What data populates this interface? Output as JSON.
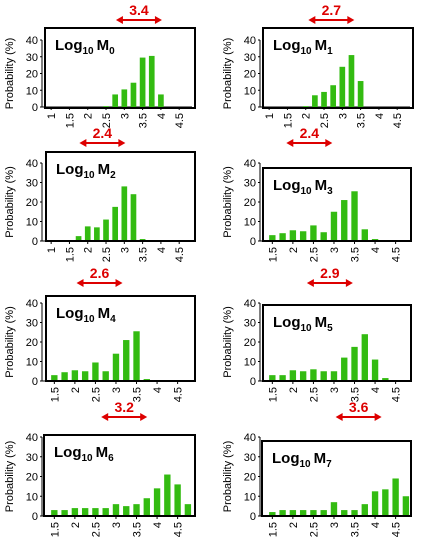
{
  "colors": {
    "bar": "#33bb11",
    "annotation": "#dd0000",
    "axis": "#000000"
  },
  "chart_data": [
    {
      "type": "bar",
      "title_main": "Log",
      "title_sub": "10",
      "title_var": "M",
      "title_idx": "0",
      "ylabel": "Probability (%)",
      "ylim": [
        0,
        40
      ],
      "yticks": [
        "0",
        "10",
        "20",
        "30",
        "40"
      ],
      "categories": [
        "1",
        "1.5",
        "2",
        "2.5",
        "3",
        "3.5",
        "4",
        "4.5"
      ],
      "x": [
        2.5,
        2.75,
        3,
        3.25,
        3.5,
        3.75,
        4
      ],
      "values": [
        0.5,
        7.5,
        10.5,
        14.5,
        29.5,
        30.5,
        7.5
      ],
      "annotation": {
        "label": "3.4",
        "value": 3.4
      }
    },
    {
      "type": "bar",
      "title_main": "Log",
      "title_sub": "10",
      "title_var": "M",
      "title_idx": "1",
      "ylabel": "Probability (%)",
      "ylim": [
        0,
        40
      ],
      "yticks": [
        "0",
        "10",
        "20",
        "30",
        "40"
      ],
      "categories": [
        "1",
        "1.5",
        "2",
        "2.5",
        "3",
        "3.5",
        "4",
        "4.5"
      ],
      "x": [
        2,
        2.25,
        2.5,
        2.75,
        3,
        3.25,
        3.5
      ],
      "values": [
        0.5,
        7,
        9,
        13,
        24,
        31,
        15.5
      ],
      "annotation": {
        "label": "2.7",
        "value": 2.7
      }
    },
    {
      "type": "bar",
      "title_main": "Log",
      "title_sub": "10",
      "title_var": "M",
      "title_idx": "2",
      "ylabel": "Probability (%)",
      "ylim": [
        0,
        40
      ],
      "yticks": [
        "0",
        "10",
        "20",
        "30",
        "40"
      ],
      "categories": [
        "1",
        "1.5",
        "2",
        "2.5",
        "3",
        "3.5",
        "4",
        "4.5"
      ],
      "x": [
        1.75,
        2,
        2.25,
        2.5,
        2.75,
        3,
        3.25,
        3.5
      ],
      "values": [
        2.5,
        7.5,
        7,
        11,
        17.5,
        28,
        24,
        1
      ],
      "annotation": {
        "label": "2.4",
        "value": 2.4
      }
    },
    {
      "type": "bar",
      "title_main": "Log",
      "title_sub": "10",
      "title_var": "M",
      "title_idx": "3",
      "ylabel": "Probability (%)",
      "ylim": [
        0,
        40
      ],
      "yticks": [
        "0",
        "10",
        "20",
        "30",
        "40"
      ],
      "categories": [
        "1.5",
        "2",
        "2.5",
        "3",
        "3.5",
        "4",
        "4.5"
      ],
      "x": [
        1.5,
        1.75,
        2,
        2.25,
        2.5,
        2.75,
        3,
        3.25,
        3.5,
        3.75,
        4
      ],
      "values": [
        3,
        4,
        5.5,
        5,
        8,
        4.5,
        15,
        21,
        25.5,
        6,
        1
      ],
      "annotation": {
        "label": "2.4",
        "value": 2.4
      }
    },
    {
      "type": "bar",
      "title_main": "Log",
      "title_sub": "10",
      "title_var": "M",
      "title_idx": "4",
      "ylabel": "Probability (%)",
      "ylim": [
        0,
        40
      ],
      "yticks": [
        "0",
        "10",
        "20",
        "30",
        "40"
      ],
      "categories": [
        "1.5",
        "2",
        "2.5",
        "3",
        "3.5",
        "4",
        "4.5"
      ],
      "x": [
        1.5,
        1.75,
        2,
        2.25,
        2.5,
        2.75,
        3,
        3.25,
        3.5,
        3.75
      ],
      "values": [
        3,
        4.5,
        5.5,
        5,
        9.5,
        5,
        14,
        21,
        25.5,
        1
      ],
      "annotation": {
        "label": "2.6",
        "value": 2.6
      }
    },
    {
      "type": "bar",
      "title_main": "Log",
      "title_sub": "10",
      "title_var": "M",
      "title_idx": "5",
      "ylabel": "Probability (%)",
      "ylim": [
        0,
        40
      ],
      "yticks": [
        "0",
        "10",
        "20",
        "30",
        "40"
      ],
      "categories": [
        "1.5",
        "2",
        "2.5",
        "3",
        "3.5",
        "4",
        "4.5"
      ],
      "x": [
        1.5,
        1.75,
        2,
        2.25,
        2.5,
        2.75,
        3,
        3.25,
        3.5,
        3.75,
        4,
        4.25
      ],
      "values": [
        3,
        3,
        5.5,
        5,
        6,
        5,
        5,
        12,
        17.5,
        24,
        11,
        1.5
      ],
      "annotation": {
        "label": "2.9",
        "value": 2.9
      }
    },
    {
      "type": "bar",
      "title_main": "Log",
      "title_sub": "10",
      "title_var": "M",
      "title_idx": "6",
      "ylabel": "Probability (%)",
      "ylim": [
        0,
        40
      ],
      "yticks": [
        "0",
        "10",
        "20",
        "30",
        "40"
      ],
      "categories": [
        "1.5",
        "2",
        "2.5",
        "3",
        "3.5",
        "4",
        "4.5"
      ],
      "x": [
        1.5,
        1.75,
        2,
        2.25,
        2.5,
        2.75,
        3,
        3.25,
        3.5,
        3.75,
        4,
        4.25,
        4.5,
        4.75
      ],
      "values": [
        3,
        3,
        4,
        4,
        4,
        4,
        6,
        5,
        6,
        9,
        14,
        21,
        16,
        6
      ],
      "annotation": {
        "label": "3.2",
        "value": 3.2
      }
    },
    {
      "type": "bar",
      "title_main": "Log",
      "title_sub": "10",
      "title_var": "M",
      "title_idx": "7",
      "ylabel": "Probability (%)",
      "ylim": [
        0,
        40
      ],
      "yticks": [
        "0",
        "10",
        "20",
        "30",
        "40"
      ],
      "categories": [
        "1.5",
        "2",
        "2.5",
        "3",
        "3.5",
        "4",
        "4.5"
      ],
      "x": [
        1.5,
        1.75,
        2,
        2.25,
        2.5,
        2.75,
        3,
        3.25,
        3.5,
        3.75,
        4,
        4.25,
        4.5,
        4.75
      ],
      "values": [
        2,
        3,
        3,
        3,
        3,
        3,
        7,
        3,
        3,
        6,
        12.5,
        13.5,
        19,
        10
      ],
      "annotation": {
        "label": "3.6",
        "value": 3.6
      }
    }
  ]
}
